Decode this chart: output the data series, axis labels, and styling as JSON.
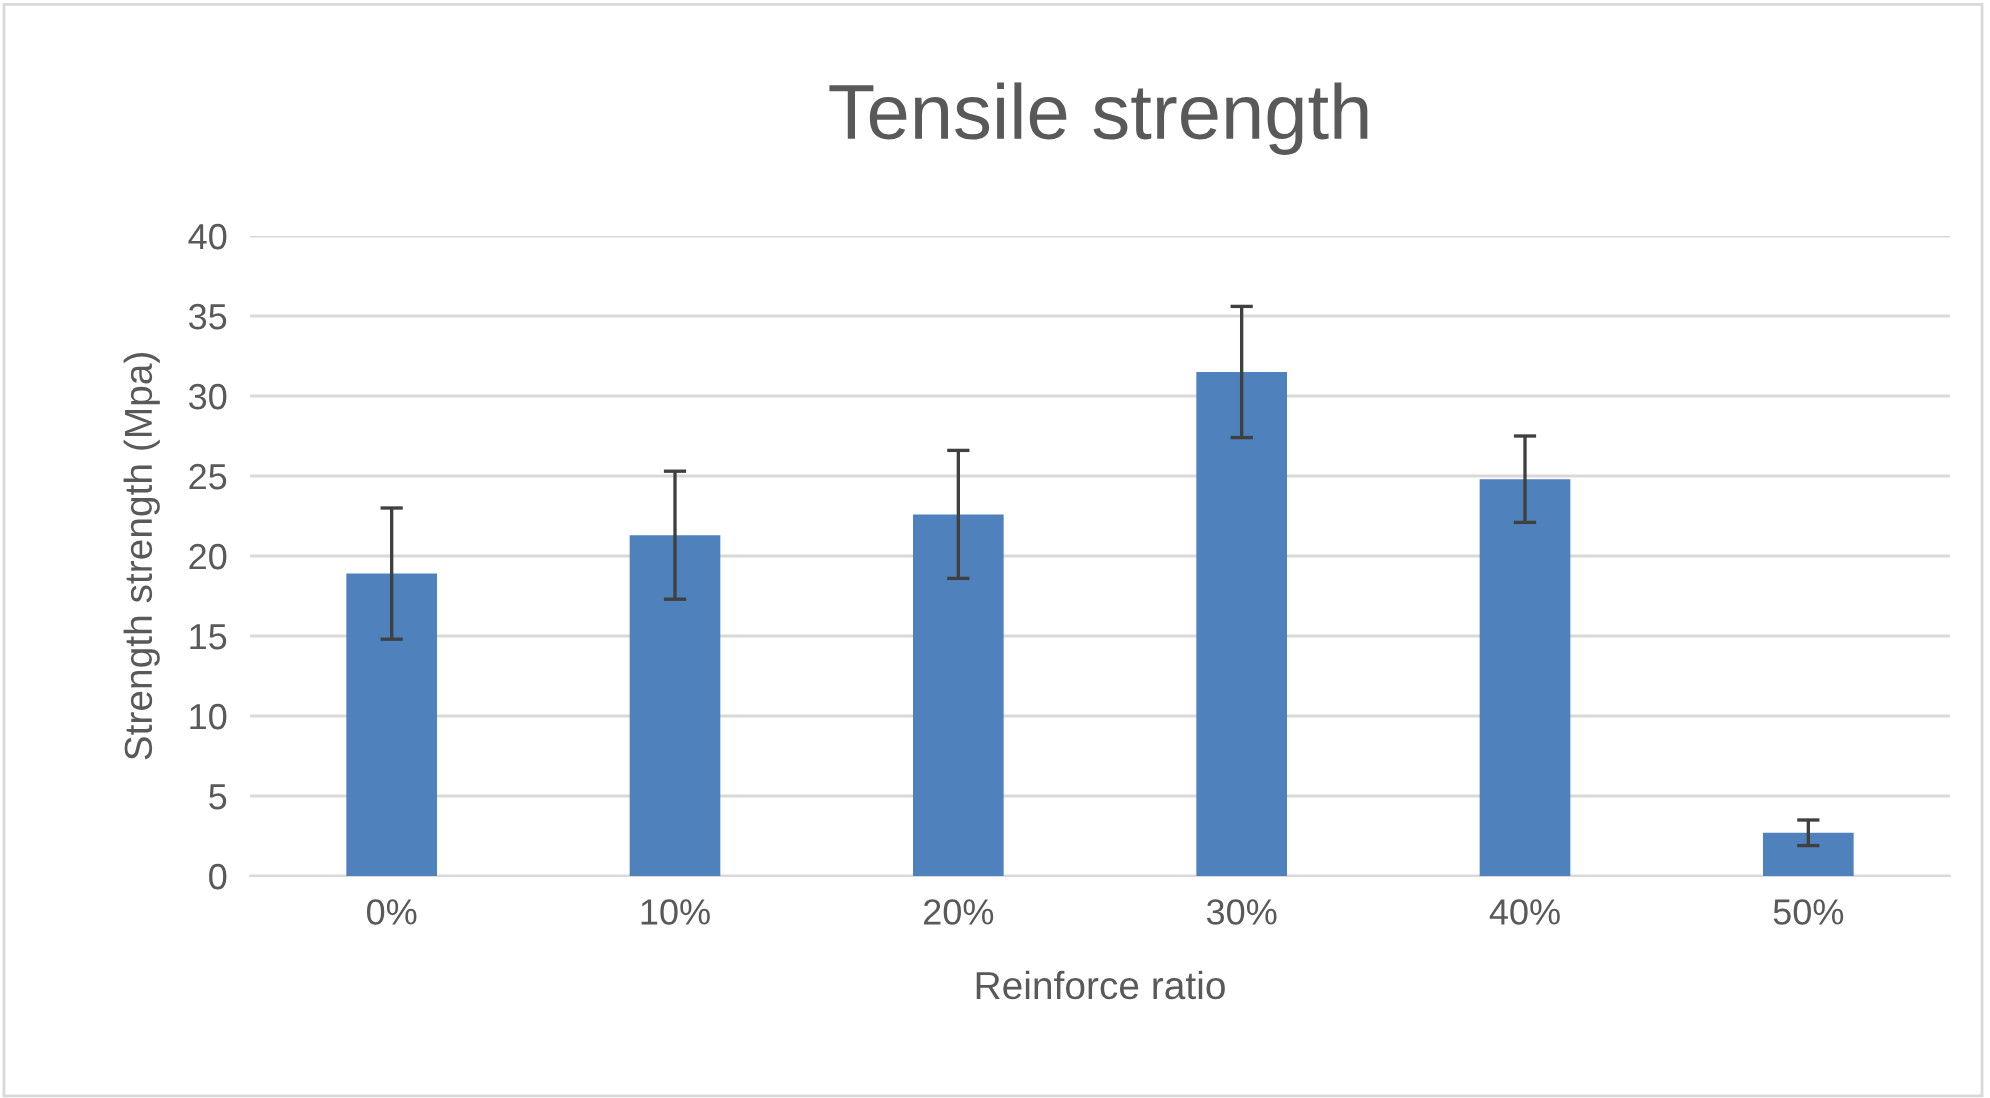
{
  "chart_data": {
    "type": "bar",
    "title": "Tensile strength",
    "xlabel": "Reinforce ratio",
    "ylabel": "Strength strength (Mpa)",
    "categories": [
      "0%",
      "10%",
      "20%",
      "30%",
      "40%",
      "50%"
    ],
    "values": [
      18.9,
      21.3,
      22.6,
      31.5,
      24.8,
      2.7
    ],
    "errors": [
      4.1,
      4.0,
      4.0,
      4.1,
      2.7,
      0.8
    ],
    "color": "#4f81bd",
    "ylim": [
      0,
      40
    ],
    "yticks": [
      0,
      5,
      10,
      15,
      20,
      25,
      30,
      35,
      40
    ],
    "grid": "y",
    "legend": false
  }
}
